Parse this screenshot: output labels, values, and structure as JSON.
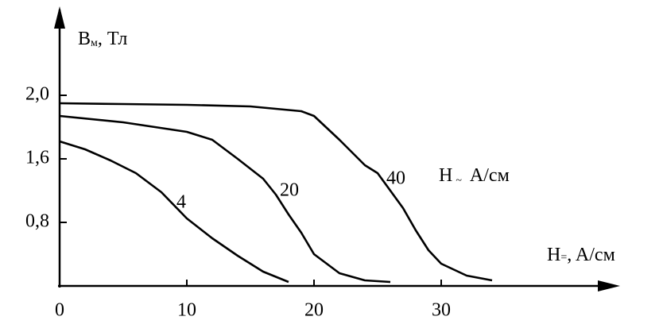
{
  "chart_data": {
    "type": "line",
    "y_label": {
      "main": "B",
      "sub": "м",
      "unit": ", Тл"
    },
    "x_label": {
      "main": "H",
      "sub": "=",
      "unit": ", A/см"
    },
    "legend_title": {
      "main": "H",
      "sub": "~",
      "unit": "A/см"
    },
    "xlim": [
      0,
      44
    ],
    "xticks": [
      0,
      10,
      20,
      30
    ],
    "ylim": [
      0,
      2.4
    ],
    "yticks": [
      {
        "value": 0.8,
        "label": "0,8"
      },
      {
        "value": 1.6,
        "label": "1,6"
      },
      {
        "value": 2.0,
        "label": "2,0"
      }
    ],
    "series": [
      {
        "name": "4",
        "color": "#000000",
        "x": [
          0,
          2,
          4,
          6,
          8,
          10,
          12,
          14,
          16,
          18
        ],
        "values": [
          1.71,
          1.66,
          1.58,
          1.42,
          1.18,
          0.85,
          0.6,
          0.38,
          0.18,
          0.05
        ]
      },
      {
        "name": "20",
        "color": "#000000",
        "x": [
          0,
          5,
          10,
          12,
          14,
          16,
          17,
          18,
          19,
          20,
          22,
          24,
          26
        ],
        "values": [
          1.87,
          1.83,
          1.77,
          1.72,
          1.6,
          1.35,
          1.15,
          0.9,
          0.67,
          0.4,
          0.16,
          0.07,
          0.05
        ]
      },
      {
        "name": "40",
        "color": "#000000",
        "x": [
          0,
          5,
          10,
          15,
          19,
          20,
          22,
          24,
          25,
          26,
          27,
          28,
          29,
          30,
          32,
          34
        ],
        "values": [
          1.95,
          1.945,
          1.94,
          1.93,
          1.9,
          1.87,
          1.72,
          1.52,
          1.42,
          1.2,
          0.98,
          0.7,
          0.45,
          0.28,
          0.13,
          0.07
        ]
      }
    ]
  }
}
